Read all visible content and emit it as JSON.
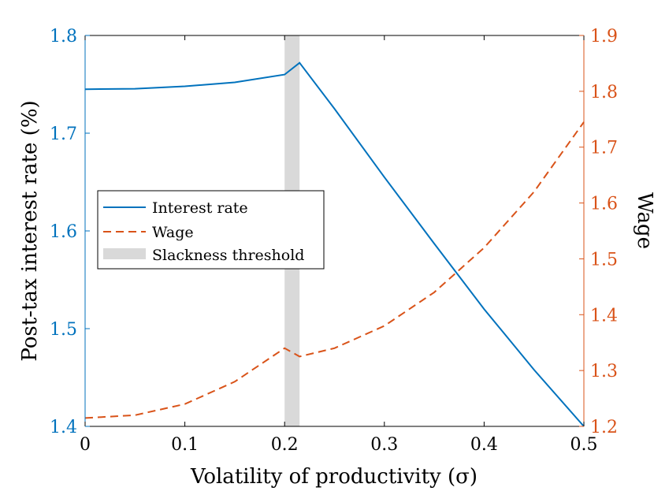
{
  "chart_data": {
    "type": "line",
    "xlabel": "Volatility of productivity (σ)",
    "ylabel_left": "Post-tax interest rate (%)",
    "ylabel_right": "Wage",
    "xlim": [
      0,
      0.5
    ],
    "ylim_left": [
      1.4,
      1.8
    ],
    "ylim_right": [
      1.2,
      1.9
    ],
    "x_ticks": [
      0,
      0.1,
      0.2,
      0.3,
      0.4,
      0.5
    ],
    "x_tick_labels": [
      "0",
      "0.1",
      "0.2",
      "0.3",
      "0.4",
      "0.5"
    ],
    "y_left_ticks": [
      1.4,
      1.5,
      1.6,
      1.7,
      1.8
    ],
    "y_left_tick_labels": [
      "1.4",
      "1.5",
      "1.6",
      "1.7",
      "1.8"
    ],
    "y_right_ticks": [
      1.2,
      1.3,
      1.4,
      1.5,
      1.6,
      1.7,
      1.8,
      1.9
    ],
    "y_right_tick_labels": [
      "1.2",
      "1.3",
      "1.4",
      "1.5",
      "1.6",
      "1.7",
      "1.8",
      "1.9"
    ],
    "threshold_band": {
      "name": "Slackness threshold",
      "x_start": 0.2,
      "x_end": 0.215
    },
    "series": [
      {
        "name": "Interest rate",
        "axis": "left",
        "style": "solid",
        "x": [
          0,
          0.05,
          0.1,
          0.15,
          0.2,
          0.215,
          0.25,
          0.3,
          0.35,
          0.4,
          0.45,
          0.5
        ],
        "values": [
          1.745,
          1.7455,
          1.748,
          1.752,
          1.76,
          1.772,
          1.725,
          1.655,
          1.587,
          1.52,
          1.458,
          1.4
        ]
      },
      {
        "name": "Wage",
        "axis": "right",
        "style": "dashed",
        "x": [
          0,
          0.05,
          0.1,
          0.15,
          0.2,
          0.215,
          0.25,
          0.3,
          0.35,
          0.4,
          0.45,
          0.5
        ],
        "values": [
          1.215,
          1.22,
          1.24,
          1.28,
          1.34,
          1.325,
          1.34,
          1.38,
          1.44,
          1.52,
          1.62,
          1.745
        ]
      }
    ],
    "legend_position": "center-left"
  },
  "colors": {
    "interest": "#0072BD",
    "wage": "#D95319",
    "band": "#D9D9D9",
    "axis": "#000000"
  }
}
